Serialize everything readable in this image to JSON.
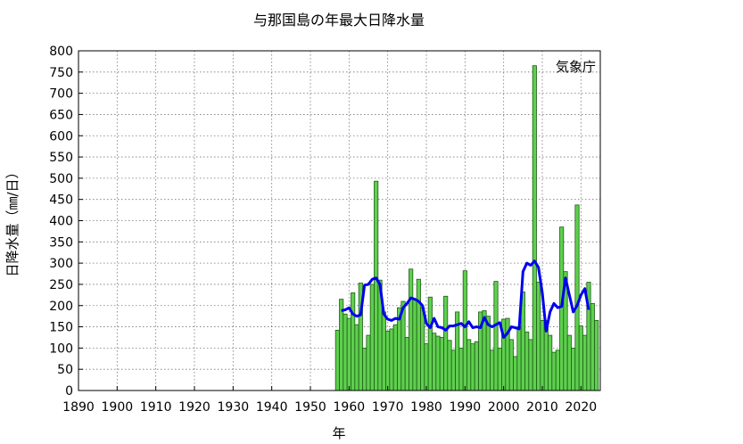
{
  "chart_data": {
    "type": "bar",
    "title": "与那国島の年最大日降水量",
    "xlabel": "年",
    "ylabel": "日降水量（㎜/日）",
    "credit": "気象庁",
    "xlim": [
      1890,
      2025
    ],
    "ylim": [
      0,
      800
    ],
    "xticks": [
      "1890",
      "1900",
      "1910",
      "1920",
      "1930",
      "1940",
      "1950",
      "1960",
      "1970",
      "1980",
      "1990",
      "2000",
      "2010",
      "2020"
    ],
    "yticks": [
      "0",
      "50",
      "100",
      "150",
      "200",
      "250",
      "300",
      "350",
      "400",
      "450",
      "500",
      "550",
      "600",
      "650",
      "700",
      "750",
      "800"
    ],
    "grid": true,
    "colors": {
      "bar_fill": "#5fcf4f",
      "bar_edge": "#1c5c14",
      "line": "#0000ee"
    },
    "series": [
      {
        "type": "bar",
        "x": [
          1957,
          1958,
          1959,
          1960,
          1961,
          1962,
          1963,
          1964,
          1965,
          1966,
          1967,
          1968,
          1969,
          1970,
          1971,
          1972,
          1973,
          1974,
          1975,
          1976,
          1977,
          1978,
          1979,
          1980,
          1981,
          1982,
          1983,
          1984,
          1985,
          1986,
          1987,
          1988,
          1989,
          1990,
          1991,
          1992,
          1993,
          1994,
          1995,
          1996,
          1997,
          1998,
          1999,
          2000,
          2001,
          2002,
          2003,
          2004,
          2005,
          2006,
          2007,
          2008,
          2009,
          2010,
          2011,
          2012,
          2013,
          2014,
          2015,
          2016,
          2017,
          2018,
          2019,
          2020,
          2021,
          2022,
          2023,
          2024
        ],
        "values": [
          142,
          215,
          180,
          170,
          230,
          155,
          253,
          100,
          130,
          250,
          493,
          260,
          185,
          140,
          145,
          155,
          195,
          210,
          125,
          286,
          215,
          262,
          195,
          110,
          220,
          135,
          128,
          125,
          222,
          118,
          95,
          185,
          100,
          282,
          120,
          110,
          115,
          185,
          188,
          175,
          95,
          257,
          100,
          168,
          170,
          120,
          80,
          150,
          232,
          138,
          120,
          765,
          255,
          165,
          165,
          130,
          90,
          95,
          385,
          280,
          130,
          100,
          437,
          152,
          130,
          255,
          205,
          165
        ]
      },
      {
        "type": "line",
        "x": [
          1958,
          1959,
          1960,
          1961,
          1962,
          1963,
          1964,
          1965,
          1966,
          1967,
          1968,
          1969,
          1970,
          1971,
          1972,
          1973,
          1974,
          1975,
          1976,
          1977,
          1978,
          1979,
          1980,
          1981,
          1982,
          1983,
          1984,
          1985,
          1986,
          1987,
          1988,
          1989,
          1990,
          1991,
          1992,
          1993,
          1994,
          1995,
          1996,
          1997,
          1998,
          1999,
          2000,
          2001,
          2002,
          2003,
          2004,
          2005,
          2006,
          2007,
          2008,
          2009,
          2010,
          2011,
          2012,
          2013,
          2014,
          2015,
          2016,
          2017,
          2018,
          2019,
          2020,
          2021,
          2022
        ],
        "values": [
          188,
          190,
          195,
          180,
          175,
          178,
          248,
          250,
          262,
          265,
          250,
          180,
          168,
          165,
          170,
          168,
          195,
          205,
          218,
          215,
          210,
          200,
          158,
          148,
          170,
          150,
          148,
          142,
          152,
          152,
          155,
          158,
          150,
          162,
          148,
          150,
          148,
          172,
          155,
          150,
          155,
          160,
          125,
          135,
          150,
          148,
          145,
          280,
          300,
          295,
          305,
          290,
          230,
          140,
          185,
          205,
          195,
          198,
          265,
          225,
          185,
          200,
          225,
          240,
          190
        ]
      }
    ]
  }
}
